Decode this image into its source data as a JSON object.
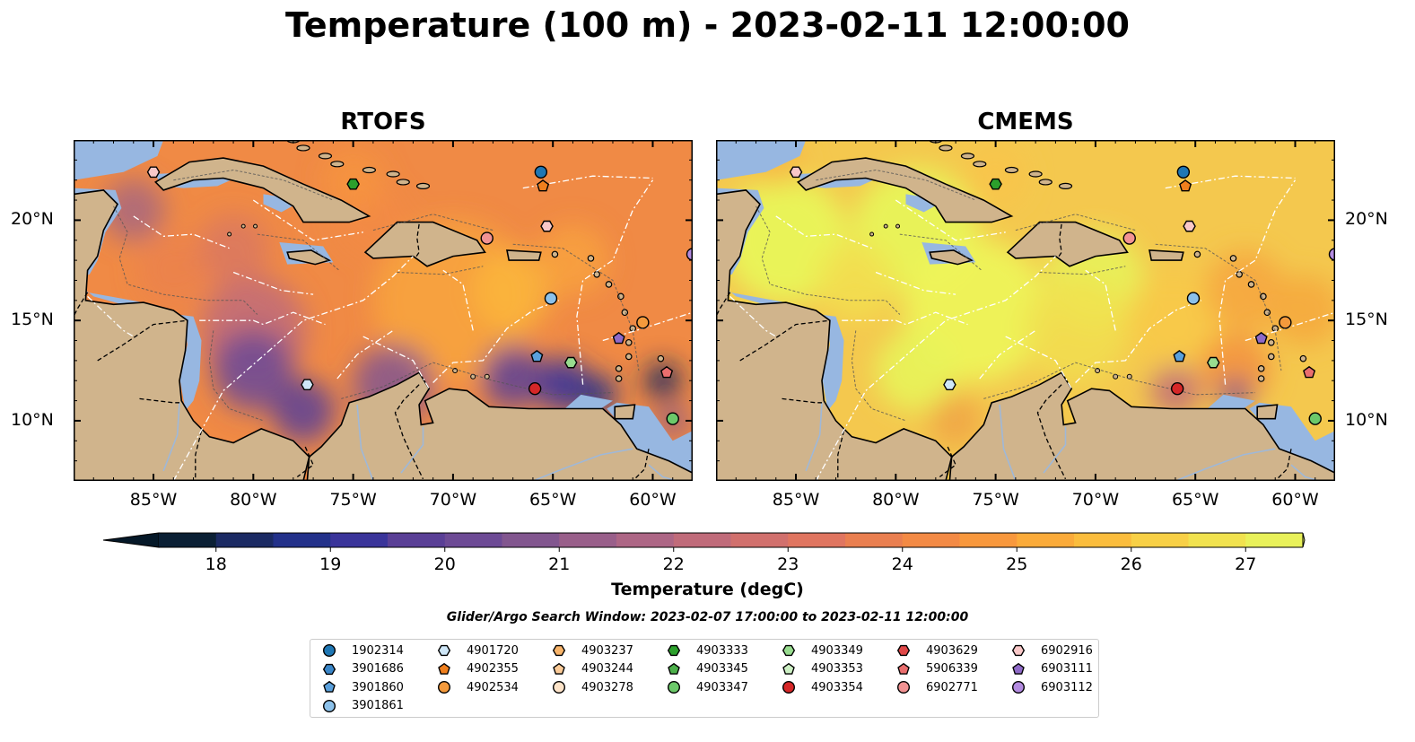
{
  "title": "Temperature (100 m) - 2023-02-11 12:00:00",
  "panels": [
    {
      "title": "RTOFS",
      "scheme": "warm-orange"
    },
    {
      "title": "CMEMS",
      "scheme": "warm-yellow"
    }
  ],
  "map_extent": {
    "lon": [
      -89,
      -58
    ],
    "lat": [
      7,
      24
    ]
  },
  "lon_ticks": [
    "85°W",
    "80°W",
    "75°W",
    "70°W",
    "65°W",
    "60°W"
  ],
  "lat_ticks": [
    "20°N",
    "15°N",
    "10°N"
  ],
  "colorbar": {
    "label": "Temperature (degC)",
    "ticks": [
      "18",
      "19",
      "20",
      "21",
      "22",
      "23",
      "24",
      "25",
      "26",
      "27"
    ],
    "colors": [
      "#0b2035",
      "#1b2a63",
      "#23318a",
      "#3a349a",
      "#5a3f96",
      "#6d4a95",
      "#82568f",
      "#995f8a",
      "#ad6685",
      "#c06b7a",
      "#d1706d",
      "#e07560",
      "#ea7f50",
      "#f38a45",
      "#f8983d",
      "#fbab3a",
      "#fbbd3d",
      "#f8d046",
      "#f1e24f",
      "#e9f15a"
    ],
    "under_color": "#051828",
    "over_color": "#e5f562"
  },
  "search_window": "Glider/Argo Search Window: 2023-02-07 17:00:00 to 2023-02-11 12:00:00",
  "legend": [
    {
      "id": "1902314",
      "marker": "circle",
      "color": "#1f77b4"
    },
    {
      "id": "3901686",
      "marker": "hexagon",
      "color": "#3a86c8"
    },
    {
      "id": "3901860",
      "marker": "pentagon",
      "color": "#5aa0dc"
    },
    {
      "id": "3901861",
      "marker": "circle",
      "color": "#8cc1ea"
    },
    {
      "id": "4901720",
      "marker": "hexagon",
      "color": "#cfe7f8"
    },
    {
      "id": "4902355",
      "marker": "pentagon",
      "color": "#f07f1d"
    },
    {
      "id": "4902534",
      "marker": "circle",
      "color": "#f49a3c"
    },
    {
      "id": "4903237",
      "marker": "hexagon",
      "color": "#f8b46a"
    },
    {
      "id": "4903244",
      "marker": "pentagon",
      "color": "#fbcb98"
    },
    {
      "id": "4903278",
      "marker": "circle",
      "color": "#fde3c8"
    },
    {
      "id": "4903333",
      "marker": "hexagon",
      "color": "#2ca02c"
    },
    {
      "id": "4903345",
      "marker": "pentagon",
      "color": "#4cb04a"
    },
    {
      "id": "4903347",
      "marker": "circle",
      "color": "#6cc96a"
    },
    {
      "id": "4903349",
      "marker": "hexagon",
      "color": "#98dc8f"
    },
    {
      "id": "4903353",
      "marker": "pentagon",
      "color": "#cdf0c4"
    },
    {
      "id": "4903354",
      "marker": "circle",
      "color": "#d62728"
    },
    {
      "id": "4903629",
      "marker": "hexagon",
      "color": "#e04848"
    },
    {
      "id": "5906339",
      "marker": "pentagon",
      "color": "#ea6e6e"
    },
    {
      "id": "6902771",
      "marker": "circle",
      "color": "#f29393"
    },
    {
      "id": "6902916",
      "marker": "hexagon",
      "color": "#f9c8c8"
    },
    {
      "id": "6903111",
      "marker": "pentagon",
      "color": "#8f6ac8"
    },
    {
      "id": "6903112",
      "marker": "circle",
      "color": "#b38be0"
    }
  ],
  "floats": [
    {
      "id": "6902916",
      "lon": -85.0,
      "lat": 22.4
    },
    {
      "id": "4903333",
      "lon": -75.0,
      "lat": 21.8
    },
    {
      "id": "1902314",
      "lon": -65.6,
      "lat": 22.4
    },
    {
      "id": "4902355",
      "lon": -65.5,
      "lat": 21.7
    },
    {
      "id": "6902916",
      "lon": -65.3,
      "lat": 19.7
    },
    {
      "id": "6902771",
      "lon": -68.3,
      "lat": 19.1
    },
    {
      "id": "6903112",
      "lon": -58.0,
      "lat": 18.3
    },
    {
      "id": "3901861",
      "lon": -65.1,
      "lat": 16.1
    },
    {
      "id": "4902534",
      "lon": -60.5,
      "lat": 14.9
    },
    {
      "id": "6903111",
      "lon": -61.7,
      "lat": 14.1
    },
    {
      "id": "3901860",
      "lon": -65.8,
      "lat": 13.2
    },
    {
      "id": "4903349",
      "lon": -64.1,
      "lat": 12.9
    },
    {
      "id": "5906339",
      "lon": -59.3,
      "lat": 12.4
    },
    {
      "id": "4901720",
      "lon": -77.3,
      "lat": 11.8
    },
    {
      "id": "4903354",
      "lon": -65.9,
      "lat": 11.6
    },
    {
      "id": "4903347",
      "lon": -59.0,
      "lat": 10.1
    }
  ]
}
